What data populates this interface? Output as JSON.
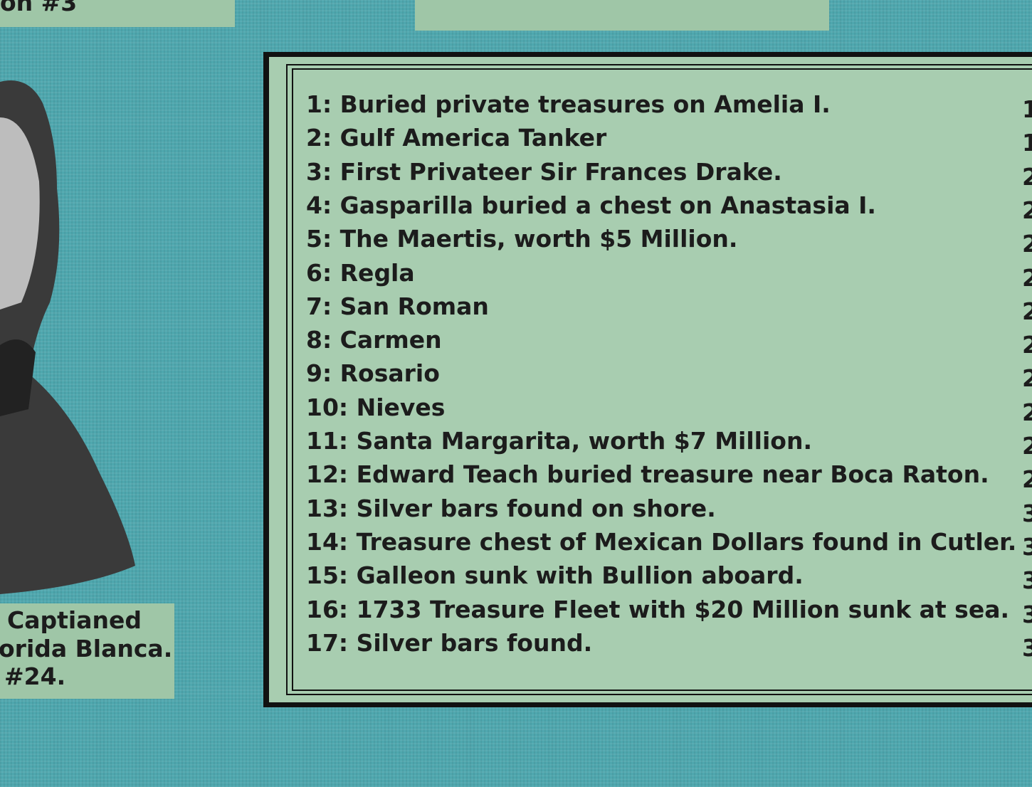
{
  "top_left_label": "on #3",
  "portrait_caption": [
    "Captianed",
    "orida Blanca.",
    "#24."
  ],
  "legend": {
    "items": [
      "1: Buried private treasures on Amelia I.",
      "2: Gulf America Tanker",
      "3: First Privateer Sir Frances Drake.",
      "4: Gasparilla buried a chest on Anastasia I.",
      "5: The Maertis, worth $5 Million.",
      "6: Regla",
      "7: San Roman",
      "8: Carmen",
      "9: Rosario",
      "10: Nieves",
      "11: Santa Margarita, worth $7 Million.",
      "12: Edward Teach buried treasure near Boca Raton.",
      "13: Silver bars found on shore.",
      "14: Treasure chest of Mexican Dollars found in Cutler.",
      "15: Galleon sunk with Bullion aboard.",
      "16: 1733 Treasure Fleet with $20 Million sunk at sea.",
      "17: Silver bars found."
    ],
    "next_column_fragments": [
      "1",
      "1",
      "2",
      "2",
      "2",
      "2",
      "2",
      "2",
      "2",
      "2",
      "2",
      "2",
      "3",
      "3",
      "3",
      "3",
      "3"
    ]
  }
}
